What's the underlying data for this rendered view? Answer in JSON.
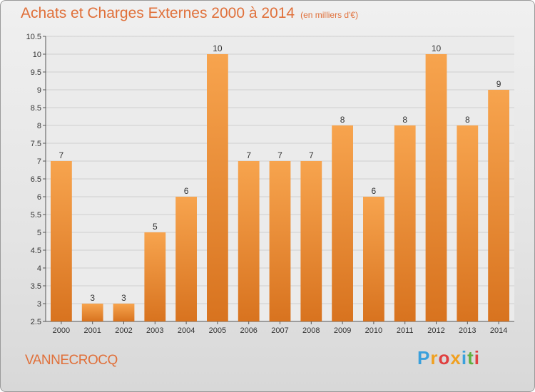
{
  "chart_data": {
    "type": "bar",
    "title": "Achats et Charges Externes 2000 à 2014",
    "subtitle": "(en milliers d'€)",
    "categories": [
      "2000",
      "2001",
      "2002",
      "2003",
      "2004",
      "2005",
      "2006",
      "2007",
      "2008",
      "2009",
      "2010",
      "2011",
      "2012",
      "2013",
      "2014"
    ],
    "values": [
      7,
      3,
      3,
      5,
      6,
      10,
      7,
      7,
      7,
      8,
      6,
      8,
      10,
      8,
      9
    ],
    "ylim": [
      2.5,
      10.5
    ],
    "yticks": [
      "2.5",
      "3",
      "3.5",
      "4",
      "4.5",
      "5",
      "5.5",
      "6",
      "6.5",
      "7",
      "7.5",
      "8",
      "8.5",
      "9",
      "9.5",
      "10",
      "10.5"
    ],
    "grid": true,
    "bar_color": "#f0913f"
  },
  "footer": {
    "commune": "VANNECROCQ",
    "logo_letters": [
      "P",
      "r",
      "o",
      "x",
      "i",
      "t",
      "i"
    ],
    "logo_colors": [
      "#3aa0dc",
      "#f0a020",
      "#e04040",
      "#f0a020",
      "#3aa0dc",
      "#60b040",
      "#e04040"
    ]
  }
}
